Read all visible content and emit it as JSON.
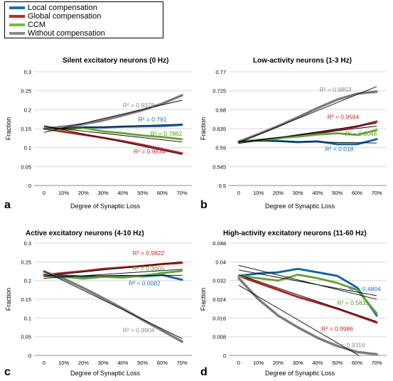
{
  "legend": [
    {
      "name": "Local compensation",
      "color": "#1f6fb4"
    },
    {
      "name": "Global compensation",
      "color": "#c0282d"
    },
    {
      "name": "CCM",
      "color": "#7ab648"
    },
    {
      "name": "Without compensation",
      "color": "#8a8a8a"
    }
  ],
  "chart_data": [
    {
      "type": "line",
      "letter": "a",
      "title": "Silent excitatory neurons (0 Hz)",
      "xlabel": "Degree of Synaptic Loss",
      "ylabel": "Fraction",
      "categories": [
        "0",
        "10%",
        "20%",
        "30%",
        "40%",
        "50%",
        "60%",
        "70%"
      ],
      "yticks": [
        "0",
        "0.05",
        "0.1",
        "0.15",
        "0.2",
        "0.25",
        "0.3"
      ],
      "ylim": [
        0,
        0.3
      ],
      "series": [
        {
          "name": "Local compensation",
          "color": "#1f6fb4",
          "values": [
            0.15,
            0.152,
            0.154,
            0.153,
            0.155,
            0.156,
            0.157,
            0.16
          ]
        },
        {
          "name": "Global compensation",
          "color": "#c0282d",
          "values": [
            0.15,
            0.142,
            0.134,
            0.126,
            0.117,
            0.107,
            0.096,
            0.085
          ]
        },
        {
          "name": "CCM",
          "color": "#7ab648",
          "values": [
            0.15,
            0.148,
            0.152,
            0.143,
            0.138,
            0.132,
            0.128,
            0.122
          ]
        },
        {
          "name": "Without compensation",
          "color": "#8a8a8a",
          "values": [
            0.15,
            0.155,
            0.162,
            0.172,
            0.185,
            0.199,
            0.216,
            0.238
          ]
        }
      ],
      "trendlines": [
        {
          "values": [
            0.14,
            0.225
          ]
        },
        {
          "values": [
            0.149,
            0.162
          ]
        },
        {
          "values": [
            0.155,
            0.115
          ]
        },
        {
          "values": [
            0.158,
            0.082
          ]
        }
      ],
      "annotations": [
        {
          "text": "R² = 0.9378",
          "color": "#8a8a8a",
          "x": 4.8,
          "y": 0.206
        },
        {
          "text": "R² = 0.791",
          "color": "#1f6fb4",
          "x": 5.5,
          "y": 0.169
        },
        {
          "text": "R² = 0.7862",
          "color": "#4e9a2a",
          "x": 6.2,
          "y": 0.131
        },
        {
          "text": "R² = 0.9834",
          "color": "#c0282d",
          "x": 5.35,
          "y": 0.084
        }
      ]
    },
    {
      "type": "line",
      "letter": "b",
      "title": "Low-activity neurons (1-3 Hz)",
      "xlabel": "Degree of Synaptic Loss",
      "ylabel": "Fraction",
      "categories": [
        "0",
        "10%",
        "20%",
        "30%",
        "40%",
        "50%",
        "60%",
        "70%"
      ],
      "yticks": [
        "0.5",
        "0.545",
        "0.59",
        "0.635",
        "0.68",
        "0.725",
        "0.77"
      ],
      "ylim": [
        0.5,
        0.77
      ],
      "series": [
        {
          "name": "Local compensation",
          "color": "#1f6fb4",
          "values": [
            0.602,
            0.608,
            0.606,
            0.603,
            0.605,
            0.598,
            0.598,
            0.61
          ]
        },
        {
          "name": "Global compensation",
          "color": "#c0282d",
          "values": [
            0.604,
            0.608,
            0.612,
            0.618,
            0.624,
            0.632,
            0.64,
            0.652
          ]
        },
        {
          "name": "CCM",
          "color": "#7ab648",
          "values": [
            0.604,
            0.608,
            0.613,
            0.616,
            0.621,
            0.624,
            0.62,
            0.632
          ]
        },
        {
          "name": "Without compensation",
          "color": "#8a8a8a",
          "values": [
            0.604,
            0.622,
            0.641,
            0.662,
            0.684,
            0.704,
            0.718,
            0.723
          ]
        }
      ],
      "trendlines": [
        {
          "values": [
            0.602,
            0.735
          ]
        },
        {
          "values": [
            0.6,
            0.648
          ]
        },
        {
          "values": [
            0.603,
            0.641
          ]
        },
        {
          "values": [
            0.606,
            0.601
          ]
        }
      ],
      "annotations": [
        {
          "text": "R² = 0.9853",
          "color": "#8a8a8a",
          "x": 4.9,
          "y": 0.723
        },
        {
          "text": "R² = 0.9594",
          "color": "#c0282d",
          "x": 5.3,
          "y": 0.658
        },
        {
          "text": "R² = 0.8048",
          "color": "#4e9a2a",
          "x": 6.2,
          "y": 0.618
        },
        {
          "text": "R² = 0.018",
          "color": "#1f6fb4",
          "x": 5.1,
          "y": 0.582
        }
      ]
    },
    {
      "type": "line",
      "letter": "c",
      "title": "Active excitatory neurons  (4-10 Hz)",
      "xlabel": "Degree of Synaptic Loss",
      "ylabel": "Fraction",
      "categories": [
        "0",
        "10%",
        "20%",
        "30%",
        "40%",
        "50%",
        "60%",
        "70%"
      ],
      "yticks": [
        "0",
        "0.05",
        "0.1",
        "0.15",
        "0.2",
        "0.25",
        "0.3"
      ],
      "ylim": [
        0,
        0.3
      ],
      "series": [
        {
          "name": "Local compensation",
          "color": "#1f6fb4",
          "values": [
            0.215,
            0.213,
            0.21,
            0.211,
            0.212,
            0.211,
            0.215,
            0.202
          ]
        },
        {
          "name": "Global compensation",
          "color": "#c0282d",
          "values": [
            0.215,
            0.22,
            0.225,
            0.231,
            0.235,
            0.239,
            0.244,
            0.247
          ]
        },
        {
          "name": "CCM",
          "color": "#7ab648",
          "values": [
            0.212,
            0.21,
            0.205,
            0.21,
            0.208,
            0.213,
            0.22,
            0.226
          ]
        },
        {
          "name": "Without compensation",
          "color": "#8a8a8a",
          "values": [
            0.224,
            0.205,
            0.18,
            0.153,
            0.125,
            0.095,
            0.066,
            0.037
          ]
        }
      ],
      "trendlines": [
        {
          "values": [
            0.225,
            0.045
          ]
        },
        {
          "values": [
            0.212,
            0.25
          ]
        },
        {
          "values": [
            0.206,
            0.23
          ]
        },
        {
          "values": [
            0.212,
            0.214
          ]
        }
      ],
      "annotations": [
        {
          "text": "R² = 0.9822",
          "color": "#c0282d",
          "x": 5.3,
          "y": 0.268
        },
        {
          "text": "R² = 0.3005",
          "color": "#4e9a2a",
          "x": 5.3,
          "y": 0.227
        },
        {
          "text": "R² = 0.0082",
          "color": "#1f6fb4",
          "x": 5.1,
          "y": 0.187
        },
        {
          "text": "R² = 0.9904",
          "color": "#8a8a8a",
          "x": 4.8,
          "y": 0.062
        }
      ]
    },
    {
      "type": "line",
      "letter": "d",
      "title": "High-activity excitatory neurons (11-60 Hz)",
      "xlabel": "Degree of Synaptic Loss",
      "ylabel": "Fraction",
      "categories": [
        "0",
        "10%",
        "20%",
        "30%",
        "40%",
        "50%",
        "60%",
        "70%"
      ],
      "yticks": [
        "0",
        "0.008",
        "0.016",
        "0.024",
        "0.032",
        "0.04",
        "0.048"
      ],
      "ylim": [
        0,
        0.048
      ],
      "series": [
        {
          "name": "Local compensation",
          "color": "#1f6fb4",
          "values": [
            0.034,
            0.035,
            0.0355,
            0.037,
            0.0355,
            0.034,
            0.029,
            0.017
          ]
        },
        {
          "name": "Global compensation",
          "color": "#c0282d",
          "values": [
            0.034,
            0.031,
            0.028,
            0.025,
            0.0225,
            0.02,
            0.017,
            0.014
          ]
        },
        {
          "name": "CCM",
          "color": "#7ab648",
          "values": [
            0.034,
            0.033,
            0.032,
            0.0345,
            0.033,
            0.031,
            0.028,
            0.018
          ]
        },
        {
          "name": "Without compensation",
          "color": "#8a8a8a",
          "values": [
            0.033,
            0.024,
            0.017,
            0.012,
            0.0075,
            0.004,
            0.0015,
            0.0005
          ]
        }
      ],
      "trendlines": [
        {
          "values": [
            0.0385,
            0.024
          ]
        },
        {
          "values": [
            0.0365,
            0.0255
          ]
        },
        {
          "values": [
            0.03,
            -0.0045
          ]
        },
        {
          "values": [
            0.0345,
            0.0145
          ]
        }
      ],
      "annotations": [
        {
          "text": "R² = 0.4804",
          "color": "#1f6fb4",
          "x": 6.4,
          "y": 0.0275
        },
        {
          "text": "R² = 0.5839",
          "color": "#4e9a2a",
          "x": 5.8,
          "y": 0.0215
        },
        {
          "text": "R² = 0.9986",
          "color": "#c0282d",
          "x": 5.0,
          "y": 0.0105
        },
        {
          "text": "R² = 0.9316",
          "color": "#8a8a8a",
          "x": 5.6,
          "y": 0.0035
        }
      ]
    }
  ]
}
